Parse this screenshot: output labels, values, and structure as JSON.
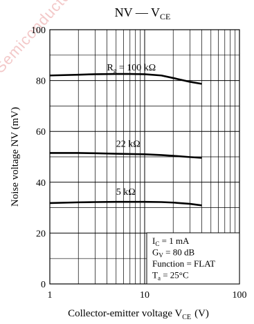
{
  "chart_data": {
    "type": "line",
    "title": "NV — V",
    "title_sub": "CE",
    "xlabel": "Collector-emitter voltage  V",
    "xlabel_sub": "CE",
    "xlabel_unit": "(V)",
    "ylabel": "Noise voltage  NV  (mV)",
    "x_scale": "log",
    "xlim": [
      1,
      100
    ],
    "ylim": [
      0,
      100
    ],
    "x_ticks": [
      {
        "value": 1,
        "label": "1"
      },
      {
        "value": 10,
        "label": "10"
      },
      {
        "value": 100,
        "label": "100"
      }
    ],
    "y_ticks": [
      {
        "value": 0,
        "label": "0"
      },
      {
        "value": 20,
        "label": "20"
      },
      {
        "value": 40,
        "label": "40"
      },
      {
        "value": 60,
        "label": "60"
      },
      {
        "value": 80,
        "label": "80"
      },
      {
        "value": 100,
        "label": "100"
      }
    ],
    "grid": true,
    "series": [
      {
        "name": "100 kΩ",
        "label_prefix": "R",
        "label_sub": "g",
        "label_eq": " = ",
        "label_anchor": [
          4,
          84
        ],
        "x": [
          1,
          2,
          3,
          5,
          7,
          10,
          15,
          20,
          30,
          40
        ],
        "y": [
          82,
          82.3,
          82.5,
          82.6,
          82.6,
          82.5,
          82,
          81,
          79.5,
          78.7
        ]
      },
      {
        "name": "22 kΩ",
        "label_prefix": "",
        "label_sub": "",
        "label_eq": "",
        "label_anchor": [
          5,
          54
        ],
        "x": [
          1,
          2,
          3,
          5,
          7,
          10,
          15,
          20,
          30,
          40
        ],
        "y": [
          51.5,
          51.5,
          51.4,
          51.2,
          51.1,
          51,
          50.7,
          50.4,
          49.9,
          49.6
        ]
      },
      {
        "name": "5 kΩ",
        "label_prefix": "",
        "label_sub": "",
        "label_eq": "",
        "label_anchor": [
          5,
          35
        ],
        "x": [
          1,
          2,
          3,
          5,
          7,
          10,
          15,
          20,
          30,
          40
        ],
        "y": [
          31.8,
          32.1,
          32.2,
          32.3,
          32.3,
          32.3,
          32.2,
          32,
          31.5,
          30.9
        ]
      }
    ],
    "conditions": [
      {
        "main": "I",
        "sub": "C",
        "rest": " = 1 mA"
      },
      {
        "main": "G",
        "sub": "V",
        "rest": " = 80 dB"
      },
      {
        "main": "Function = FLAT",
        "sub": "",
        "rest": ""
      },
      {
        "main": "T",
        "sub": "a",
        "rest": " = 25°C"
      }
    ]
  },
  "watermark": "Semiconductor"
}
